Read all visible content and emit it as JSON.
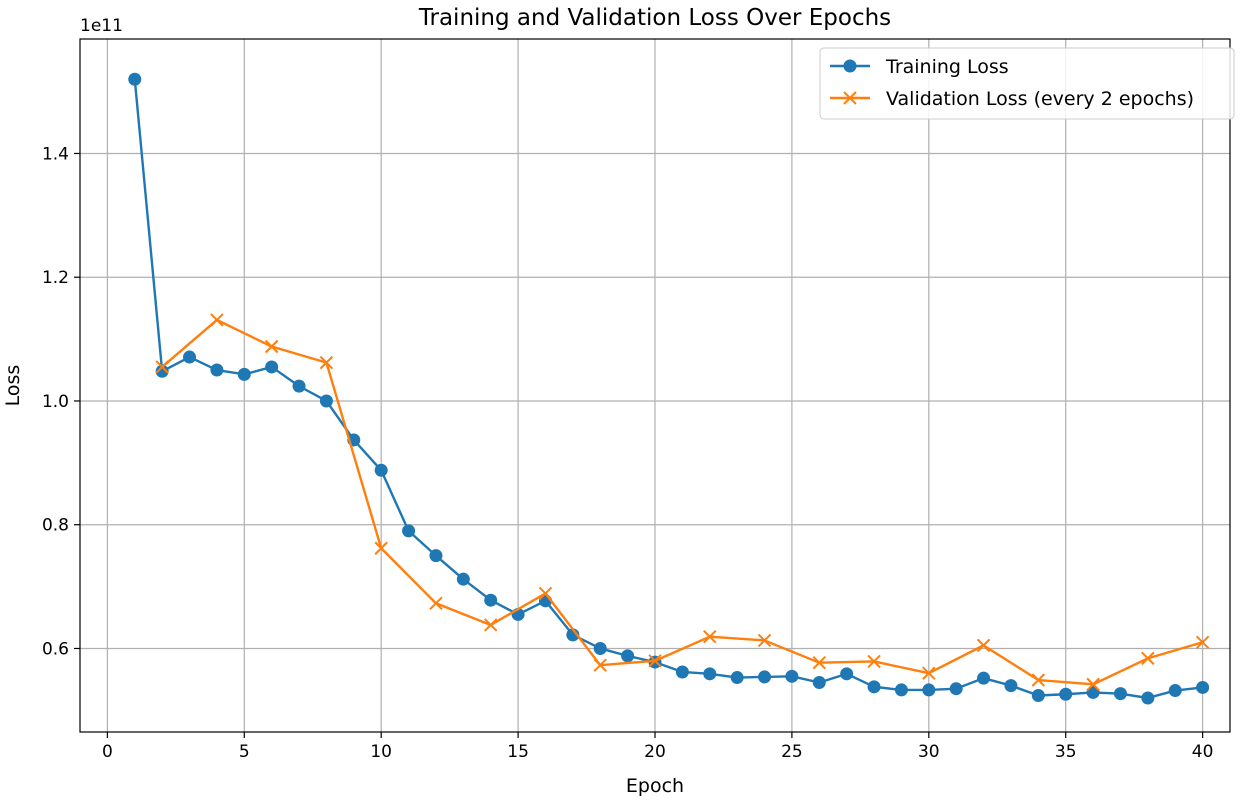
{
  "chart_data": {
    "type": "line",
    "title": "Training and Validation Loss Over Epochs",
    "xlabel": "Epoch",
    "ylabel": "Loss",
    "y_scale_label": "1e11",
    "xlim": [
      -1,
      41
    ],
    "ylim": [
      0.465,
      1.585
    ],
    "x_ticks": [
      0,
      5,
      10,
      15,
      20,
      25,
      30,
      35,
      40
    ],
    "x_tick_labels": [
      "0",
      "5",
      "10",
      "15",
      "20",
      "25",
      "30",
      "35",
      "40"
    ],
    "y_ticks": [
      0.6,
      0.8,
      1.0,
      1.2,
      1.4
    ],
    "y_tick_labels": [
      "0.6",
      "0.8",
      "1.0",
      "1.2",
      "1.4"
    ],
    "grid": true,
    "legend_position": "top-right",
    "series": [
      {
        "name": "Training Loss",
        "color": "#1f77b4",
        "marker": "circle",
        "x": [
          1,
          2,
          3,
          4,
          5,
          6,
          7,
          8,
          9,
          10,
          11,
          12,
          13,
          14,
          15,
          16,
          17,
          18,
          19,
          20,
          21,
          22,
          23,
          24,
          25,
          26,
          27,
          28,
          29,
          30,
          31,
          32,
          33,
          34,
          35,
          36,
          37,
          38,
          39,
          40
        ],
        "values": [
          1.52,
          1.048,
          1.071,
          1.05,
          1.043,
          1.055,
          1.024,
          1.0,
          0.937,
          0.888,
          0.79,
          0.75,
          0.712,
          0.678,
          0.655,
          0.677,
          0.622,
          0.6,
          0.588,
          0.578,
          0.562,
          0.559,
          0.553,
          0.554,
          0.555,
          0.545,
          0.559,
          0.538,
          0.533,
          0.533,
          0.535,
          0.552,
          0.54,
          0.524,
          0.526,
          0.529,
          0.527,
          0.52,
          0.532,
          0.537
        ]
      },
      {
        "name": "Validation Loss (every 2 epochs)",
        "color": "#ff7f0e",
        "marker": "x",
        "x": [
          2,
          4,
          6,
          8,
          10,
          12,
          14,
          16,
          18,
          20,
          22,
          24,
          26,
          28,
          30,
          32,
          34,
          36,
          38,
          40
        ],
        "values": [
          1.055,
          1.131,
          1.088,
          1.062,
          0.762,
          0.673,
          0.638,
          0.689,
          0.573,
          0.58,
          0.619,
          0.613,
          0.577,
          0.579,
          0.56,
          0.605,
          0.549,
          0.542,
          0.584,
          0.61
        ]
      }
    ]
  }
}
